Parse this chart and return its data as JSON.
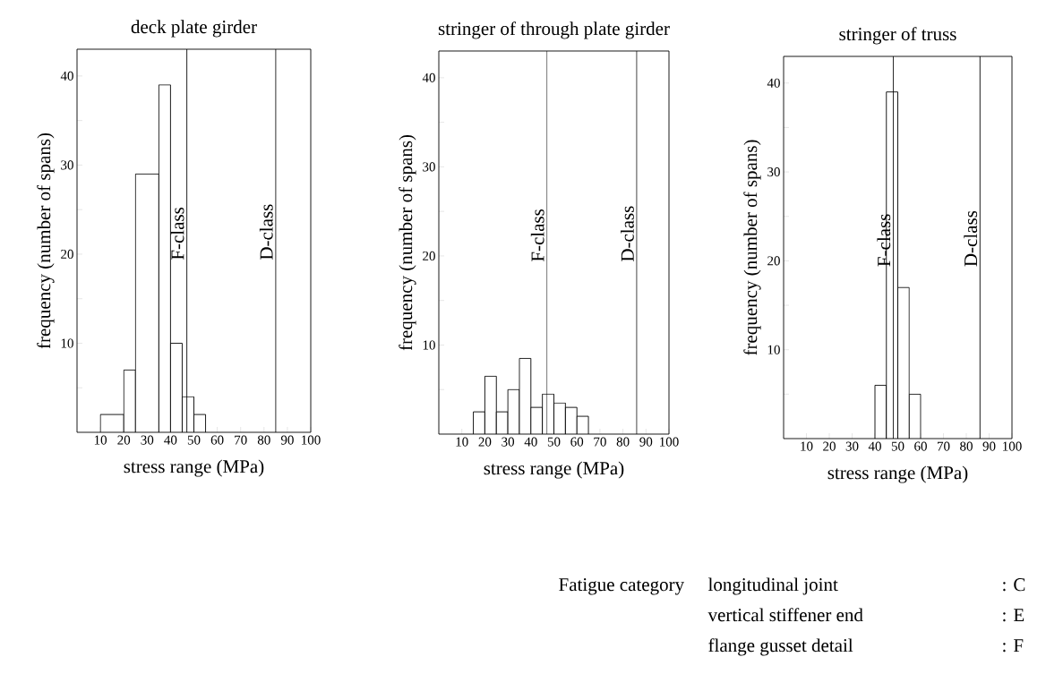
{
  "chart_data": [
    {
      "type": "histogram",
      "title": "deck plate girder",
      "xlabel": "stress range   (MPa)",
      "ylabel": "frequency (number of spans)",
      "bins": [
        10,
        20,
        25,
        35,
        40,
        45,
        50,
        55
      ],
      "values": [
        2,
        7,
        29,
        39,
        10,
        4,
        2
      ],
      "color": "#000000",
      "xlim": [
        0,
        100
      ],
      "ylim": [
        0,
        43
      ],
      "xticks": [
        10,
        20,
        30,
        40,
        50,
        60,
        70,
        80,
        90,
        100
      ],
      "yticks": [
        {
          "value": 5,
          "label": null
        },
        10,
        {
          "value": 15,
          "label": null
        },
        20,
        {
          "value": 25,
          "label": null
        },
        30,
        {
          "value": 35,
          "label": null
        },
        40
      ],
      "ref_lines": [
        {
          "axis": "x",
          "value": 47,
          "label": "F-class"
        },
        {
          "axis": "x",
          "value": 85,
          "label": "D-class"
        }
      ]
    },
    {
      "type": "histogram",
      "title": "stringer of through plate girder",
      "xlabel": "stress range   (MPa)",
      "ylabel": "frequency (number of spans)",
      "bins": [
        15,
        20,
        25,
        30,
        35,
        40,
        45,
        50,
        55,
        60,
        65
      ],
      "values": [
        2.5,
        6.5,
        2.5,
        5,
        8.5,
        3,
        4.5,
        3.5,
        3,
        2
      ],
      "color": "#000000",
      "xlim": [
        0,
        100
      ],
      "ylim": [
        0,
        43
      ],
      "xticks": [
        10,
        20,
        30,
        40,
        50,
        60,
        70,
        80,
        90,
        100
      ],
      "yticks": [
        {
          "value": 5,
          "label": null
        },
        10,
        {
          "value": 15,
          "label": null
        },
        20,
        {
          "value": 25,
          "label": null
        },
        30,
        {
          "value": 35,
          "label": null
        },
        40
      ],
      "ref_lines": [
        {
          "axis": "x",
          "value": 47,
          "label": "F-class"
        },
        {
          "axis": "x",
          "value": 86,
          "label": "D-class"
        }
      ]
    },
    {
      "type": "histogram",
      "title": "stringer of truss",
      "xlabel": "stress range   (MPa)",
      "ylabel": "frequency (number of spans)",
      "bins": [
        40,
        45,
        50,
        55,
        60
      ],
      "values": [
        6,
        39,
        17,
        5
      ],
      "color": "#000000",
      "xlim": [
        0,
        100
      ],
      "ylim": [
        0,
        43
      ],
      "xticks": [
        10,
        20,
        30,
        40,
        50,
        60,
        70,
        80,
        90,
        100
      ],
      "yticks": [
        {
          "value": 5,
          "label": null
        },
        10,
        {
          "value": 15,
          "label": null
        },
        20,
        {
          "value": 25,
          "label": null
        },
        30,
        {
          "value": 35,
          "label": null
        },
        40
      ],
      "ref_lines": [
        {
          "axis": "x",
          "value": 48,
          "label": "F-class"
        },
        {
          "axis": "x",
          "value": 86,
          "label": "D-class"
        }
      ]
    },
    {
      "type": "other",
      "annotations": [
        "Fatigue category",
        "longitudinal joint",
        ": C",
        "vertical stiffener end",
        ": E",
        "flange gusset detail",
        ": F"
      ]
    }
  ]
}
